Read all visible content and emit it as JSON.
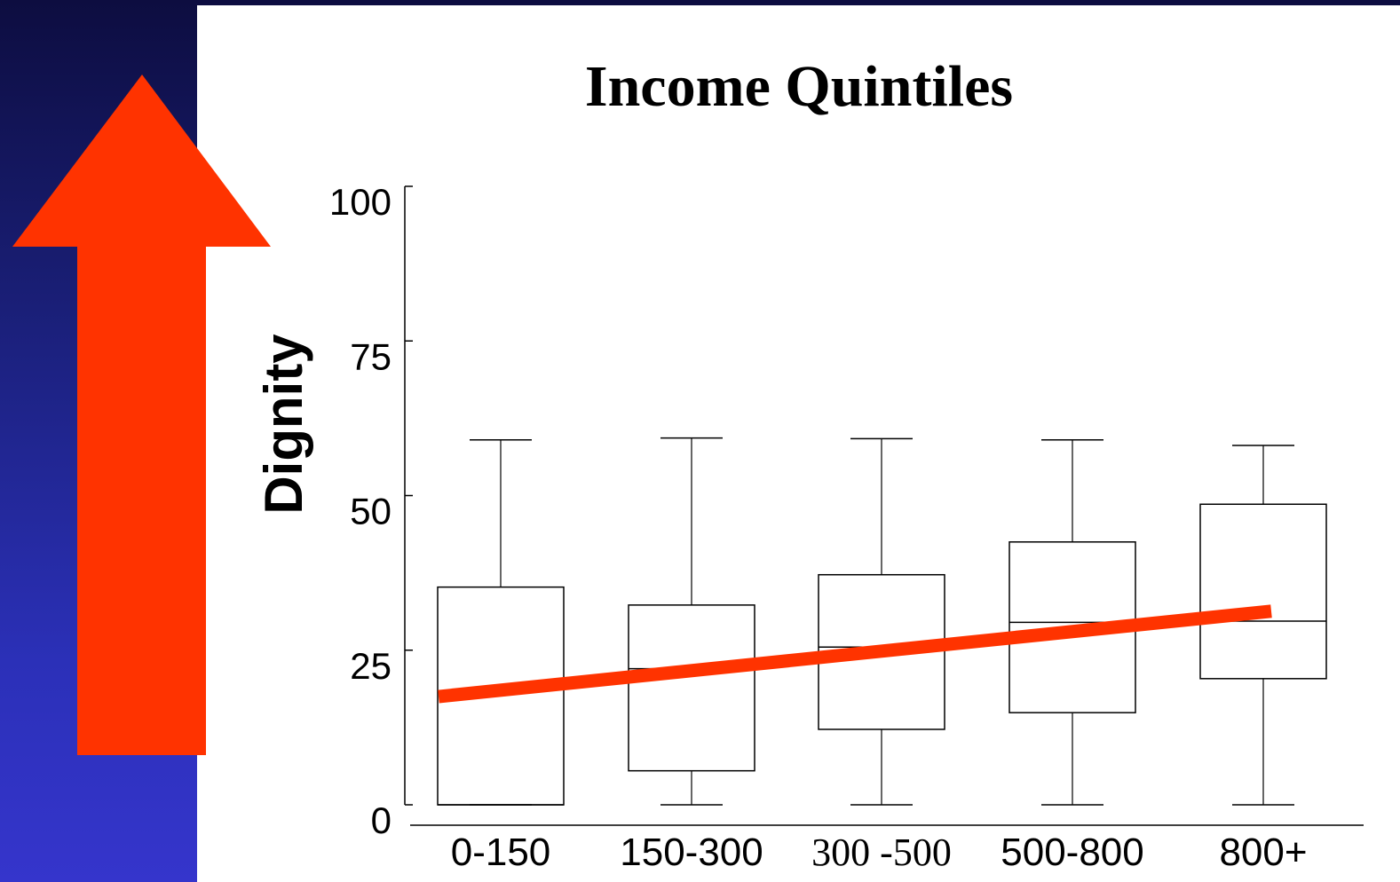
{
  "chart_data": {
    "type": "box",
    "title": "Income Quintiles",
    "ylabel": "Dignity",
    "xlabel": "",
    "ylim": [
      0,
      100
    ],
    "yticks": [
      "0",
      "25",
      "50",
      "75",
      "100"
    ],
    "categories": [
      "0-150",
      "150-300",
      "300 -500",
      "500-800",
      "800+"
    ],
    "boxes": [
      {
        "min": 0,
        "q1": 0,
        "median": 0,
        "q3": 35.2,
        "max": 59
      },
      {
        "min": 0,
        "q1": 5.5,
        "median": 22,
        "q3": 32.3,
        "max": 59.3
      },
      {
        "min": 0,
        "q1": 12.2,
        "median": 25.5,
        "q3": 37.2,
        "max": 59.2
      },
      {
        "min": 0,
        "q1": 14.9,
        "median": 29.5,
        "q3": 42.5,
        "max": 59
      },
      {
        "min": 0,
        "q1": 20.4,
        "median": 29.7,
        "q3": 48.6,
        "max": 58.1
      }
    ],
    "trend_line": {
      "start": 17.5,
      "end": 31.3,
      "color": "#ff3300"
    }
  },
  "colors": {
    "arrow": "#ff3300",
    "background_top": "#0d0d40",
    "background_bottom": "#3535cc",
    "panel": "#ffffff"
  },
  "decorations": {
    "arrow_icon": "up-arrow-icon"
  }
}
